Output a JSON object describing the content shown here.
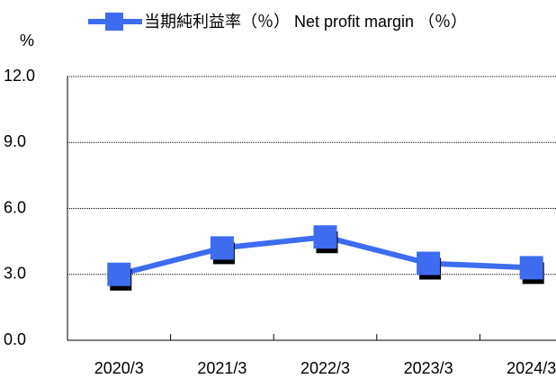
{
  "chart_data": {
    "type": "line",
    "y_label": "%",
    "categories": [
      "2020/3",
      "2021/3",
      "2022/3",
      "2023/3",
      "2024/3"
    ],
    "series": [
      {
        "name": "当期純利益率（％） Net profit margin （％）",
        "color": "#3d6cf0",
        "values": [
          3.0,
          4.2,
          4.7,
          3.5,
          3.3
        ]
      }
    ],
    "ylim": [
      0,
      12
    ],
    "yticks": [
      {
        "value": 0,
        "label": "0.0"
      },
      {
        "value": 3,
        "label": "3.0"
      },
      {
        "value": 6,
        "label": "6.0"
      },
      {
        "value": 9,
        "label": "9.0"
      },
      {
        "value": 12,
        "label": "12.0"
      }
    ],
    "grid": true,
    "legend": "top"
  }
}
